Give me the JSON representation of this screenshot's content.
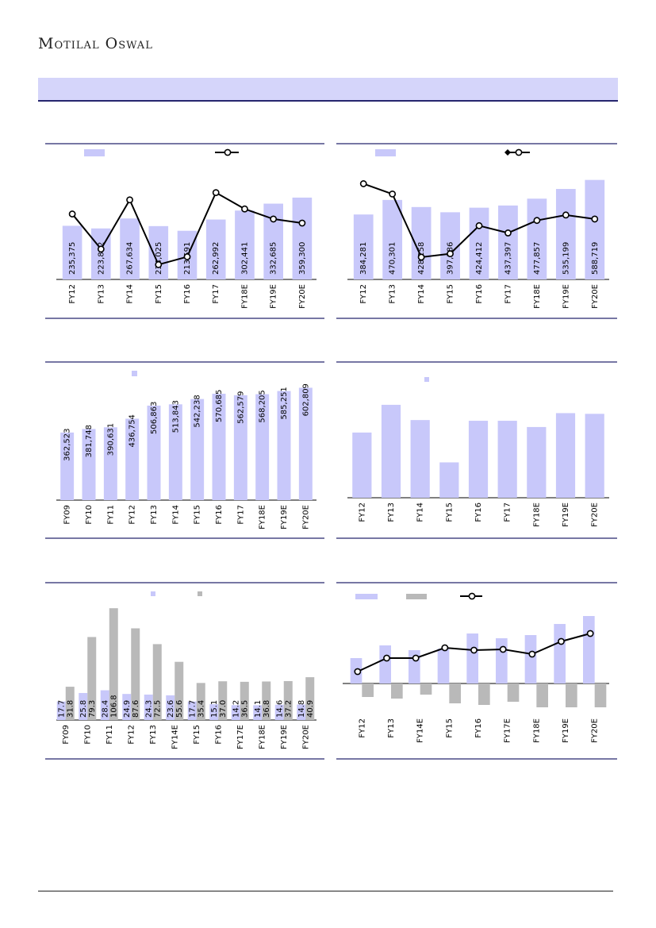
{
  "header": {
    "brand": "Motilal Oswal"
  },
  "colors": {
    "bar": "#c8c8fa",
    "grey_bar": "#b9b9b9",
    "line": "#000000",
    "rule": "#26266e",
    "banner": "#d5d5fa"
  },
  "chart_data": [
    {
      "type": "bar+line",
      "categories": [
        "FY12",
        "FY13",
        "FY14",
        "FY15",
        "FY16",
        "FY17",
        "FY18E",
        "FY19E",
        "FY20E"
      ],
      "bar_values": [
        235375,
        223882,
        267634,
        234025,
        213591,
        262992,
        302441,
        332685,
        359300
      ],
      "bar_labels": [
        "235,375",
        "223,882",
        "267,634",
        "234,025",
        "213,591",
        "262,992",
        "302,441",
        "332,685",
        "359,300"
      ],
      "line_values": [
        12.5,
        -4.9,
        19.5,
        -12.6,
        -8.7,
        23.1,
        15.0,
        10.0,
        8.0
      ],
      "legend": "top"
    },
    {
      "type": "bar+line",
      "categories": [
        "FY12",
        "FY13",
        "FY14",
        "FY15",
        "FY16",
        "FY17",
        "FY18E",
        "FY19E",
        "FY20E"
      ],
      "bar_values": [
        384281,
        470301,
        428258,
        397586,
        424412,
        437397,
        477857,
        535199,
        588719
      ],
      "bar_labels": [
        "384,281",
        "470,301",
        "428,258",
        "397,586",
        "424,412",
        "437,397",
        "477,857",
        "535,199",
        "588,719"
      ],
      "line_values": [
        27.5,
        22.4,
        -8.9,
        -7.2,
        6.7,
        3.1,
        9.3,
        12.0,
        10.0
      ],
      "legend": "top"
    },
    {
      "type": "bar",
      "categories": [
        "FY09",
        "FY10",
        "FY11",
        "FY12",
        "FY13",
        "FY14",
        "FY15",
        "FY16",
        "FY17",
        "FY18E",
        "FY19E",
        "FY20E"
      ],
      "values": [
        362523,
        381748,
        390631,
        436754,
        506863,
        513843,
        542238,
        570685,
        562579,
        568205,
        585251,
        602809
      ],
      "labels": [
        "362,523",
        "381,748",
        "390,631",
        "436,754",
        "506,863",
        "513,843",
        "542,238",
        "570,685",
        "562,579",
        "568,205",
        "585,251",
        "602,809"
      ],
      "legend": "top"
    },
    {
      "type": "bar",
      "categories": [
        "FY12",
        "FY13",
        "FY14",
        "FY15",
        "FY16",
        "FY17",
        "FY18E",
        "FY19E",
        "FY20E"
      ],
      "values": [
        47,
        67,
        56,
        25.5,
        55.5,
        55.5,
        51,
        61,
        60.5
      ],
      "legend": "top"
    },
    {
      "type": "bar",
      "categories": [
        "FY09",
        "FY10",
        "FY11",
        "FY12",
        "FY13",
        "FY14E",
        "FY15",
        "FY16",
        "FY17E",
        "FY18E",
        "FY19E",
        "FY20E"
      ],
      "series": [
        {
          "values": [
            17.7,
            25.8,
            28.4,
            24.9,
            24.3,
            23.6,
            17.7,
            15.1,
            14.2,
            14.1,
            14.6,
            14.8
          ],
          "labels": [
            "17.7",
            "25.8",
            "28.4",
            "24.9",
            "24.3",
            "23.6",
            "17.7",
            "15.1",
            "14.2",
            "14.1",
            "14.6",
            "14.8"
          ]
        },
        {
          "values": [
            31.8,
            79.3,
            106.8,
            87.6,
            72.5,
            55.6,
            35.4,
            37.0,
            36.5,
            36.8,
            37.2,
            40.9
          ],
          "labels": [
            "31.8",
            "79.3",
            "106.8",
            "87.6",
            "72.5",
            "55.6",
            "35.4",
            "37.0",
            "36.5",
            "36.8",
            "37.2",
            "40.9"
          ]
        }
      ],
      "legend": "top"
    },
    {
      "type": "bar+line",
      "categories": [
        "FY12",
        "FY13",
        "FY14E",
        "FY15",
        "FY16",
        "FY17E",
        "FY18E",
        "FY19E",
        "FY20E"
      ],
      "bar_values": [
        32,
        48,
        42,
        44,
        63,
        57,
        61,
        75,
        85
      ],
      "neg_bar_values": [
        -17,
        -19,
        -14,
        -25,
        -27,
        -23,
        -30,
        -30,
        -30
      ],
      "line_values": [
        15,
        32,
        32,
        45,
        42,
        43,
        37,
        53,
        63
      ],
      "legend": "top"
    }
  ]
}
